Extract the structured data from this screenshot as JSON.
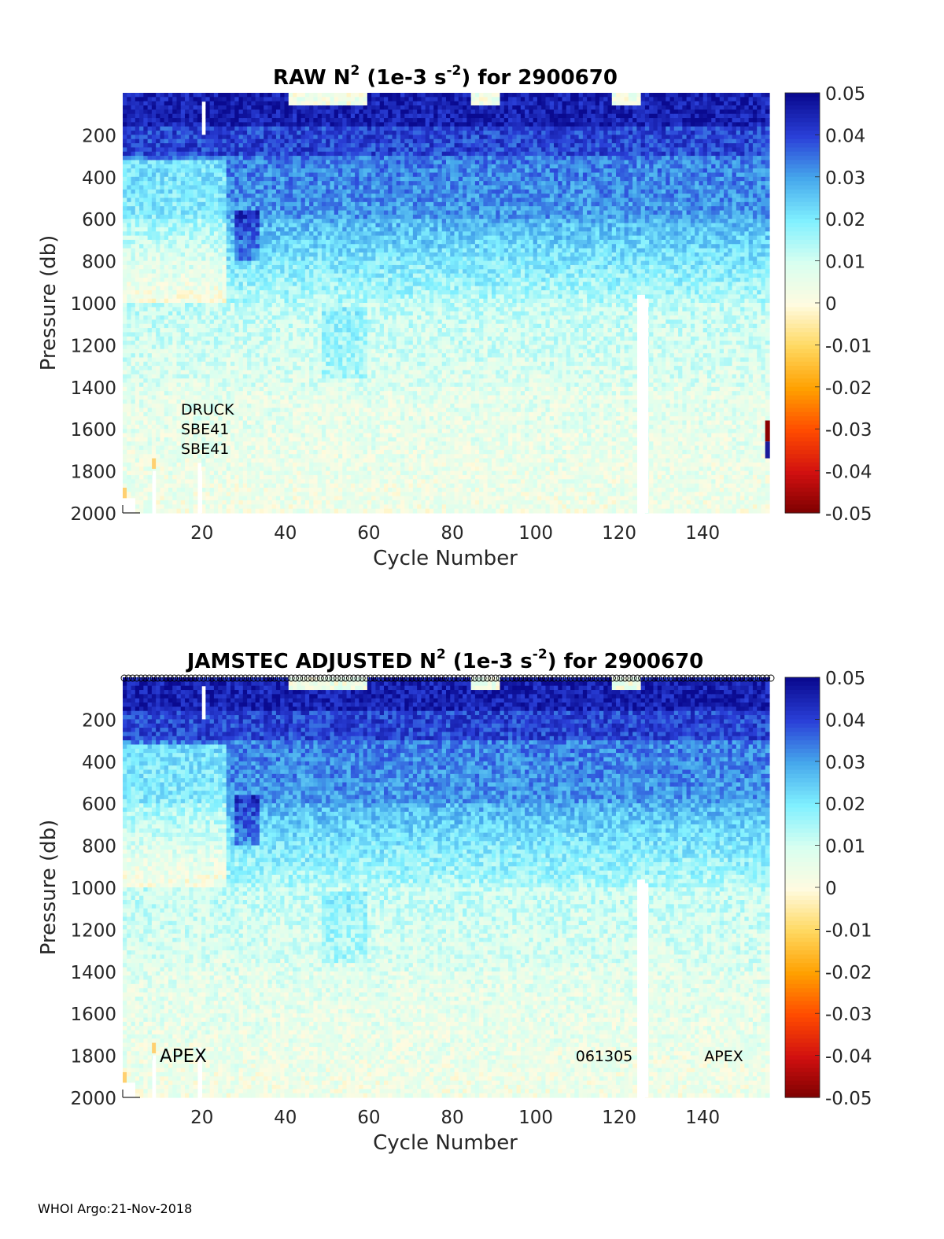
{
  "footer": "WHOI Argo:21-Nov-2018",
  "chart_data": [
    {
      "type": "heatmap",
      "title_main": "RAW N",
      "title_sup": "2",
      "title_mid": " (1e-3 s",
      "title_sup2": "-2",
      "title_end": ") for 2900670",
      "xlabel": "Cycle Number",
      "ylabel": "Pressure (db)",
      "xlim": [
        1,
        156
      ],
      "ylim": [
        0,
        2000
      ],
      "y_reversed": true,
      "xticks": [
        20,
        40,
        60,
        80,
        100,
        120,
        140
      ],
      "yticks": [
        200,
        400,
        600,
        800,
        1000,
        1200,
        1400,
        1600,
        1800,
        2000
      ],
      "colorbar": {
        "range": [
          -0.05,
          0.05
        ],
        "ticks": [
          "0.05",
          "0.04",
          "0.03",
          "0.02",
          "0.01",
          "0",
          "-0.01",
          "-0.02",
          "-0.03",
          "-0.04",
          "-0.05"
        ],
        "colormap": [
          "#7a0000",
          "#d11010",
          "#ff4b00",
          "#ffa000",
          "#ffd860",
          "#fffbe0",
          "#d8fff0",
          "#80f0ff",
          "#46a8ec",
          "#2a40d8",
          "#0a0a90"
        ]
      },
      "annotations": [
        "DRUCK",
        "SBE41",
        "SBE41"
      ],
      "markers_row": false
    },
    {
      "type": "heatmap",
      "title_main": "JAMSTEC  ADJUSTED N",
      "title_sup": "2",
      "title_mid": " (1e-3 s",
      "title_sup2": "-2",
      "title_end": ") for 2900670",
      "xlabel": "Cycle Number",
      "ylabel": "Pressure (db)",
      "xlim": [
        1,
        156
      ],
      "ylim": [
        0,
        2000
      ],
      "y_reversed": true,
      "xticks": [
        20,
        40,
        60,
        80,
        100,
        120,
        140
      ],
      "yticks": [
        200,
        400,
        600,
        800,
        1000,
        1200,
        1400,
        1600,
        1800,
        2000
      ],
      "colorbar": {
        "range": [
          -0.05,
          0.05
        ],
        "ticks": [
          "0.05",
          "0.04",
          "0.03",
          "0.02",
          "0.01",
          "0",
          "-0.01",
          "-0.02",
          "-0.03",
          "-0.04",
          "-0.05"
        ],
        "colormap": [
          "#7a0000",
          "#d11010",
          "#ff4b00",
          "#ffa000",
          "#ffd860",
          "#fffbe0",
          "#d8fff0",
          "#80f0ff",
          "#46a8ec",
          "#2a40d8",
          "#0a0a90"
        ]
      },
      "annotations": [
        "APEX",
        "061305",
        "APEX"
      ],
      "markers_row": true
    }
  ]
}
